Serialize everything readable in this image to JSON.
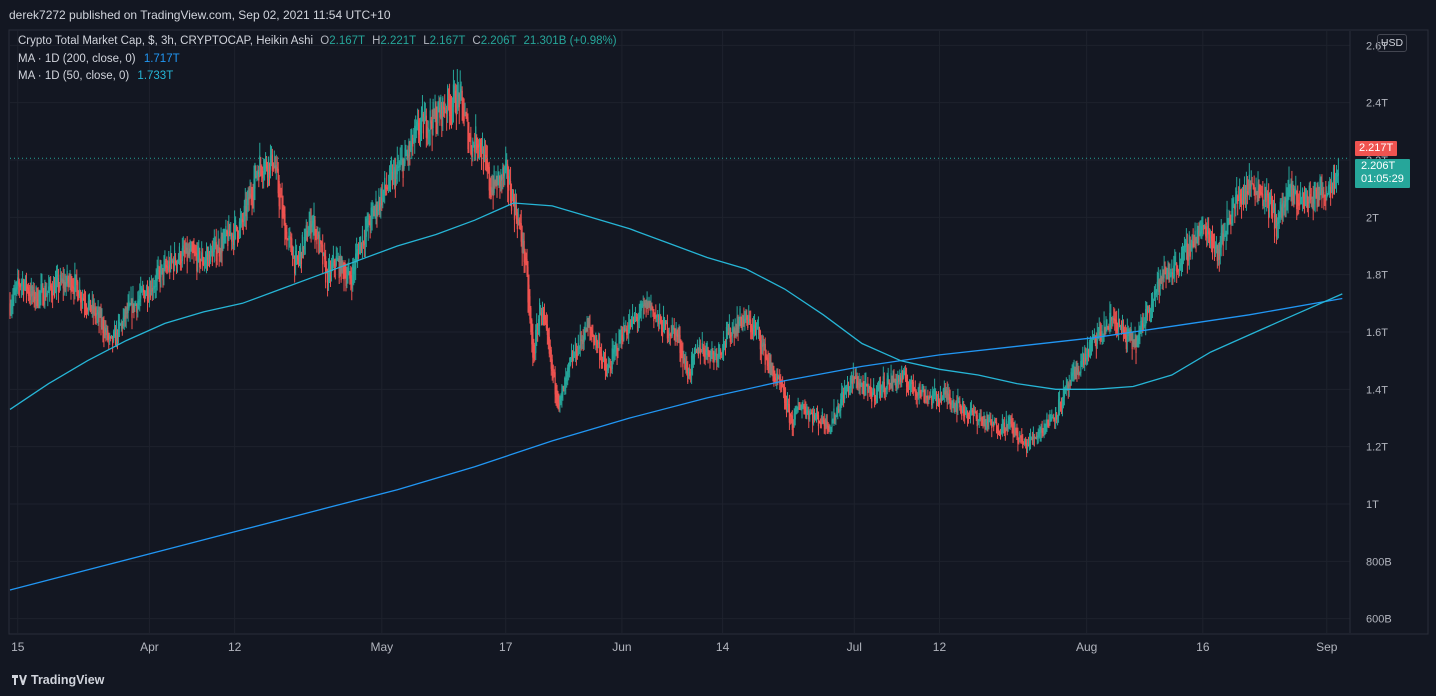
{
  "header": {
    "publish_text": "derek7272 published on TradingView.com, Sep 02, 2021 11:54 UTC+10"
  },
  "legend": {
    "symbol_line_label": "Crypto Total Market Cap, $, 3h, CRYPTOCAP, Heikin Ashi",
    "o_label": "O",
    "o_value": "2.167T",
    "h_label": "H",
    "h_value": "2.221T",
    "l_label": "L",
    "l_value": "2.167T",
    "c_label": "C",
    "c_value": "2.206T",
    "change": "21.301B (+0.98%)",
    "ma200_label": "MA · 1D (200, close, 0)",
    "ma200_value": "1.717T",
    "ma50_label": "MA · 1D (50, close, 0)",
    "ma50_value": "1.733T"
  },
  "price_scale": {
    "currency": "USD"
  },
  "tags": {
    "price_high": "2.217T",
    "price_last": "2.206T",
    "countdown": "01:05:29"
  },
  "footer": {
    "brand": "TradingView"
  },
  "colors": {
    "up": "#26a69a",
    "down": "#ef5350",
    "ma200": "#2196f3",
    "ma50": "#26b5d6",
    "grid": "#1e222d",
    "bg": "#131722"
  },
  "chart_data": {
    "type": "candlestick",
    "title": "Crypto Total Market Cap, $, 3h, CRYPTOCAP, Heikin Ashi",
    "y_unit": "USD",
    "ylim": [
      0.55,
      2.65
    ],
    "y_ticks": [
      0.6,
      0.8,
      1.0,
      1.2,
      1.4,
      1.6,
      1.8,
      2.0,
      2.2,
      2.4,
      2.6
    ],
    "y_tick_labels": [
      "600B",
      "800B",
      "1T",
      "1.2T",
      "1.4T",
      "1.6T",
      "1.8T",
      "2T",
      "2.2T",
      "2.4T",
      "2.6T"
    ],
    "x_range_days": [
      0,
      173
    ],
    "x_ticks": [
      {
        "day": 1,
        "label": "15"
      },
      {
        "day": 18,
        "label": "Apr"
      },
      {
        "day": 29,
        "label": "12"
      },
      {
        "day": 48,
        "label": "May"
      },
      {
        "day": 64,
        "label": "17"
      },
      {
        "day": 79,
        "label": "Jun"
      },
      {
        "day": 92,
        "label": "14"
      },
      {
        "day": 109,
        "label": "Jul"
      },
      {
        "day": 120,
        "label": "12"
      },
      {
        "day": 139,
        "label": "Aug"
      },
      {
        "day": 154,
        "label": "16"
      },
      {
        "day": 170,
        "label": "Sep"
      }
    ],
    "price_path": [
      {
        "day": 0,
        "value": 1.7
      },
      {
        "day": 1.5,
        "value": 1.78
      },
      {
        "day": 3,
        "value": 1.72
      },
      {
        "day": 6,
        "value": 1.76
      },
      {
        "day": 8,
        "value": 1.78
      },
      {
        "day": 10,
        "value": 1.7
      },
      {
        "day": 12,
        "value": 1.62
      },
      {
        "day": 13,
        "value": 1.55
      },
      {
        "day": 15,
        "value": 1.66
      },
      {
        "day": 18,
        "value": 1.76
      },
      {
        "day": 22,
        "value": 1.87
      },
      {
        "day": 25,
        "value": 1.85
      },
      {
        "day": 27,
        "value": 1.9
      },
      {
        "day": 30,
        "value": 1.98
      },
      {
        "day": 32,
        "value": 2.18
      },
      {
        "day": 34,
        "value": 2.2
      },
      {
        "day": 35.5,
        "value": 1.95
      },
      {
        "day": 37,
        "value": 1.83
      },
      {
        "day": 39,
        "value": 2.0
      },
      {
        "day": 41,
        "value": 1.78
      },
      {
        "day": 42,
        "value": 1.85
      },
      {
        "day": 44,
        "value": 1.78
      },
      {
        "day": 45,
        "value": 1.9
      },
      {
        "day": 48,
        "value": 2.08
      },
      {
        "day": 51,
        "value": 2.2
      },
      {
        "day": 53,
        "value": 2.32
      },
      {
        "day": 55,
        "value": 2.35
      },
      {
        "day": 56.5,
        "value": 2.4
      },
      {
        "day": 58,
        "value": 2.42
      },
      {
        "day": 59.5,
        "value": 2.25
      },
      {
        "day": 60.5,
        "value": 2.28
      },
      {
        "day": 62,
        "value": 2.1
      },
      {
        "day": 64,
        "value": 2.15
      },
      {
        "day": 65.5,
        "value": 2.0
      },
      {
        "day": 66.5,
        "value": 1.85
      },
      {
        "day": 67.5,
        "value": 1.5
      },
      {
        "day": 68.5,
        "value": 1.7
      },
      {
        "day": 70,
        "value": 1.45
      },
      {
        "day": 71,
        "value": 1.35
      },
      {
        "day": 72.5,
        "value": 1.5
      },
      {
        "day": 74.5,
        "value": 1.62
      },
      {
        "day": 76,
        "value": 1.55
      },
      {
        "day": 77,
        "value": 1.45
      },
      {
        "day": 79,
        "value": 1.6
      },
      {
        "day": 81,
        "value": 1.65
      },
      {
        "day": 82.5,
        "value": 1.7
      },
      {
        "day": 84,
        "value": 1.62
      },
      {
        "day": 86,
        "value": 1.6
      },
      {
        "day": 87.5,
        "value": 1.45
      },
      {
        "day": 89,
        "value": 1.55
      },
      {
        "day": 91,
        "value": 1.52
      },
      {
        "day": 93,
        "value": 1.6
      },
      {
        "day": 94.5,
        "value": 1.65
      },
      {
        "day": 96.5,
        "value": 1.6
      },
      {
        "day": 98,
        "value": 1.48
      },
      {
        "day": 99.5,
        "value": 1.4
      },
      {
        "day": 101,
        "value": 1.28
      },
      {
        "day": 102,
        "value": 1.35
      },
      {
        "day": 104,
        "value": 1.3
      },
      {
        "day": 106,
        "value": 1.28
      },
      {
        "day": 107.5,
        "value": 1.38
      },
      {
        "day": 109,
        "value": 1.44
      },
      {
        "day": 111,
        "value": 1.38
      },
      {
        "day": 113,
        "value": 1.42
      },
      {
        "day": 115,
        "value": 1.44
      },
      {
        "day": 117,
        "value": 1.4
      },
      {
        "day": 119,
        "value": 1.37
      },
      {
        "day": 121,
        "value": 1.38
      },
      {
        "day": 123,
        "value": 1.33
      },
      {
        "day": 125,
        "value": 1.3
      },
      {
        "day": 127,
        "value": 1.27
      },
      {
        "day": 129,
        "value": 1.28
      },
      {
        "day": 131,
        "value": 1.2
      },
      {
        "day": 133,
        "value": 1.26
      },
      {
        "day": 135,
        "value": 1.32
      },
      {
        "day": 136.5,
        "value": 1.4
      },
      {
        "day": 138,
        "value": 1.48
      },
      {
        "day": 139.5,
        "value": 1.55
      },
      {
        "day": 141,
        "value": 1.6
      },
      {
        "day": 142.5,
        "value": 1.65
      },
      {
        "day": 144,
        "value": 1.58
      },
      {
        "day": 145.5,
        "value": 1.56
      },
      {
        "day": 147,
        "value": 1.7
      },
      {
        "day": 148.5,
        "value": 1.78
      },
      {
        "day": 150,
        "value": 1.82
      },
      {
        "day": 151.5,
        "value": 1.86
      },
      {
        "day": 153,
        "value": 1.94
      },
      {
        "day": 154.5,
        "value": 1.96
      },
      {
        "day": 156,
        "value": 1.88
      },
      {
        "day": 157.5,
        "value": 2.02
      },
      {
        "day": 159,
        "value": 2.08
      },
      {
        "day": 160.5,
        "value": 2.12
      },
      {
        "day": 162,
        "value": 2.08
      },
      {
        "day": 163.5,
        "value": 1.98
      },
      {
        "day": 165,
        "value": 2.08
      },
      {
        "day": 167,
        "value": 2.06
      },
      {
        "day": 169,
        "value": 2.08
      },
      {
        "day": 170.5,
        "value": 2.12
      },
      {
        "day": 171.5,
        "value": 2.2
      }
    ],
    "series": [
      {
        "name": "MA 1D (200, close, 0)",
        "color": "#2196f3",
        "x": [
          0,
          10,
          20,
          30,
          40,
          50,
          60,
          70,
          80,
          90,
          100,
          110,
          120,
          130,
          140,
          150,
          160,
          172
        ],
        "values": [
          0.7,
          0.77,
          0.84,
          0.91,
          0.98,
          1.05,
          1.13,
          1.22,
          1.3,
          1.37,
          1.43,
          1.48,
          1.52,
          1.55,
          1.58,
          1.62,
          1.66,
          1.717
        ]
      },
      {
        "name": "MA 1D (50, close, 0)",
        "color": "#26b5d6",
        "x": [
          0,
          5,
          10,
          15,
          20,
          25,
          30,
          35,
          40,
          45,
          50,
          55,
          60,
          65,
          70,
          75,
          80,
          85,
          90,
          95,
          100,
          105,
          110,
          115,
          120,
          125,
          130,
          135,
          140,
          145,
          150,
          155,
          160,
          165,
          172
        ],
        "values": [
          1.33,
          1.42,
          1.5,
          1.57,
          1.63,
          1.67,
          1.7,
          1.75,
          1.8,
          1.85,
          1.9,
          1.94,
          1.99,
          2.05,
          2.04,
          2.0,
          1.96,
          1.91,
          1.86,
          1.82,
          1.75,
          1.66,
          1.56,
          1.5,
          1.47,
          1.45,
          1.42,
          1.4,
          1.4,
          1.41,
          1.45,
          1.53,
          1.59,
          1.65,
          1.733
        ]
      }
    ]
  }
}
